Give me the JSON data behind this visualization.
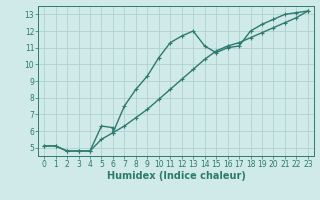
{
  "title": "",
  "xlabel": "Humidex (Indice chaleur)",
  "ylabel": "",
  "bg_color": "#d0eaea",
  "grid_color": "#b0d0d0",
  "line_color": "#2d7a6e",
  "xlim": [
    -0.5,
    23.5
  ],
  "ylim": [
    4.5,
    13.5
  ],
  "xticks": [
    0,
    1,
    2,
    3,
    4,
    5,
    6,
    7,
    8,
    9,
    10,
    11,
    12,
    13,
    14,
    15,
    16,
    17,
    18,
    19,
    20,
    21,
    22,
    23
  ],
  "yticks": [
    5,
    6,
    7,
    8,
    9,
    10,
    11,
    12,
    13
  ],
  "series1_x": [
    0,
    1,
    2,
    3,
    4,
    5,
    6,
    6,
    7,
    8,
    9,
    10,
    11,
    12,
    13,
    14,
    15,
    16,
    17,
    18,
    19,
    20,
    21,
    22,
    23
  ],
  "series1_y": [
    5.1,
    5.1,
    4.8,
    4.8,
    4.8,
    6.3,
    6.2,
    5.9,
    7.5,
    8.5,
    9.3,
    10.4,
    11.3,
    11.7,
    12.0,
    11.1,
    10.7,
    11.0,
    11.1,
    12.0,
    12.4,
    12.7,
    13.0,
    13.1,
    13.2
  ],
  "series2_x": [
    0,
    1,
    2,
    3,
    4,
    5,
    6,
    7,
    8,
    9,
    10,
    11,
    12,
    13,
    14,
    15,
    16,
    17,
    18,
    19,
    20,
    21,
    22,
    23
  ],
  "series2_y": [
    5.1,
    5.1,
    4.8,
    4.8,
    4.8,
    5.5,
    5.9,
    6.3,
    6.8,
    7.3,
    7.9,
    8.5,
    9.1,
    9.7,
    10.3,
    10.8,
    11.1,
    11.3,
    11.6,
    11.9,
    12.2,
    12.5,
    12.8,
    13.2
  ],
  "marker_size": 3.5,
  "line_width": 1.0,
  "tick_fontsize": 5.5,
  "label_fontsize": 7
}
